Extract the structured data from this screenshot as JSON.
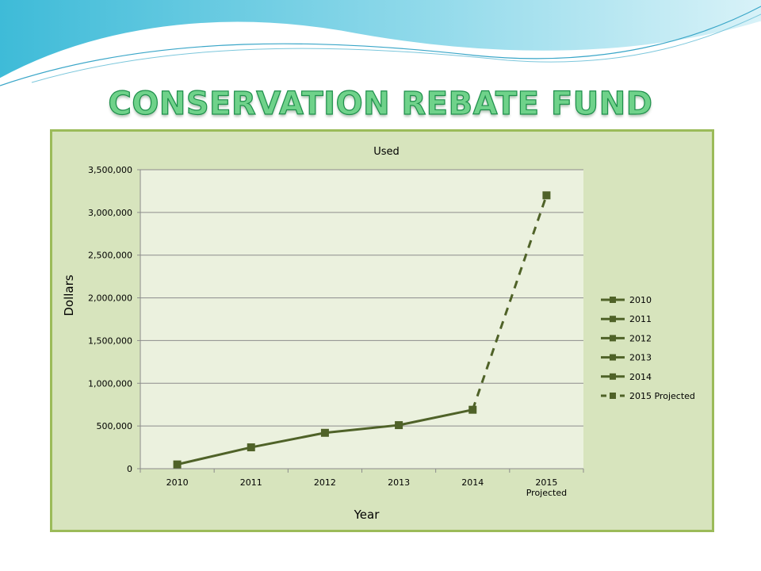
{
  "slide": {
    "title": "CONSERVATION REBATE FUND"
  },
  "colors": {
    "series_line": "#4f6228",
    "plot_background": "#ebf1de",
    "panel_background": "#d7e4bd",
    "panel_border": "#9bbb59",
    "title_fill": "#6fd28a",
    "title_outline": "#1e8f4b"
  },
  "chart_data": {
    "type": "line",
    "title": "Used",
    "xlabel": "Year",
    "ylabel": "Dollars",
    "categories": [
      "2010",
      "2011",
      "2012",
      "2013",
      "2014",
      "2015 Projected"
    ],
    "ylim": [
      0,
      3500000
    ],
    "yticks": [
      0,
      500000,
      1000000,
      1500000,
      2000000,
      2500000,
      3000000,
      3500000
    ],
    "ytick_labels": [
      "0",
      "500,000",
      "1,000,000",
      "1,500,000",
      "2,000,000",
      "2,500,000",
      "3,000,000",
      "3,500,000"
    ],
    "values": [
      50000,
      250000,
      420000,
      510000,
      690000,
      3200000
    ],
    "projected_from_index": 4,
    "grid": true,
    "legend_position": "right",
    "legend": [
      "2010",
      "2011",
      "2012",
      "2013",
      "2014",
      "2015 Projected"
    ]
  }
}
